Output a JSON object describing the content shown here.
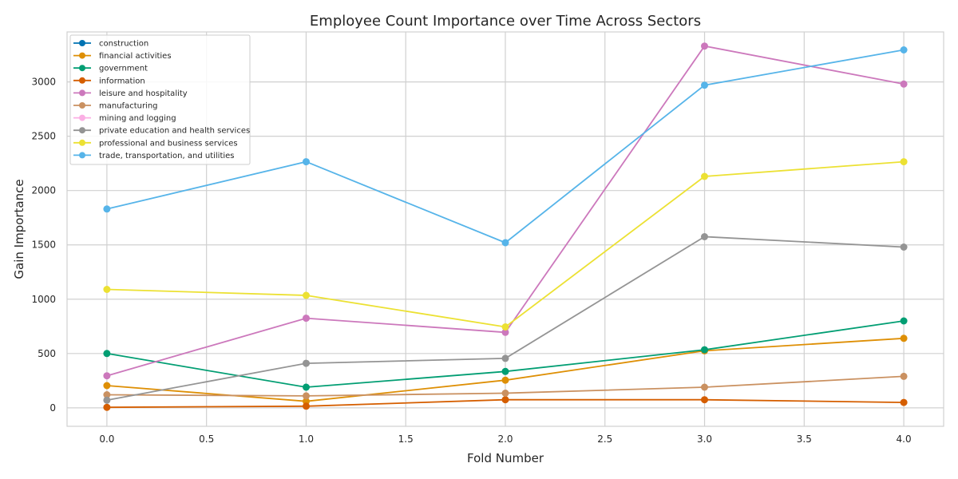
{
  "chart_data": {
    "type": "line",
    "title": "Employee Count Importance over Time Across Sectors",
    "xlabel": "Fold Number",
    "ylabel": "Gain Importance",
    "xlim": [
      -0.2,
      4.2
    ],
    "ylim": [
      -170,
      3460
    ],
    "xticks": [
      0.0,
      0.5,
      1.0,
      1.5,
      2.0,
      2.5,
      3.0,
      3.5,
      4.0
    ],
    "xtick_labels": [
      "0.0",
      "0.5",
      "1.0",
      "1.5",
      "2.0",
      "2.5",
      "3.0",
      "3.5",
      "4.0"
    ],
    "yticks": [
      0,
      500,
      1000,
      1500,
      2000,
      2500,
      3000
    ],
    "ytick_labels": [
      "0",
      "500",
      "1000",
      "1500",
      "2000",
      "2500",
      "3000"
    ],
    "grid": true,
    "legend_position": "top-left",
    "x": [
      0,
      1,
      2,
      3,
      4
    ],
    "series": [
      {
        "name": "construction",
        "color": "#0173b2",
        "values": [
          null,
          null,
          null,
          null,
          null
        ]
      },
      {
        "name": "financial activities",
        "color": "#de8f05",
        "values": [
          205,
          60,
          255,
          525,
          640
        ]
      },
      {
        "name": "government",
        "color": "#029e73",
        "values": [
          500,
          190,
          335,
          535,
          800
        ]
      },
      {
        "name": "information",
        "color": "#d55e00",
        "values": [
          5,
          15,
          75,
          75,
          50
        ]
      },
      {
        "name": "leisure and hospitality",
        "color": "#cc78bc",
        "values": [
          295,
          825,
          695,
          3330,
          2980
        ]
      },
      {
        "name": "manufacturing",
        "color": "#ca9161",
        "values": [
          120,
          110,
          135,
          190,
          290
        ]
      },
      {
        "name": "mining and logging",
        "color": "#fbafe4",
        "values": [
          null,
          null,
          null,
          null,
          null
        ]
      },
      {
        "name": "private education and health services",
        "color": "#949494",
        "values": [
          70,
          410,
          455,
          1575,
          1480
        ]
      },
      {
        "name": "professional and business services",
        "color": "#ece133",
        "values": [
          1090,
          1035,
          745,
          2130,
          2265
        ]
      },
      {
        "name": "trade, transportation, and utilities",
        "color": "#56b4e9",
        "values": [
          1830,
          2265,
          1520,
          2970,
          3295
        ]
      }
    ]
  }
}
